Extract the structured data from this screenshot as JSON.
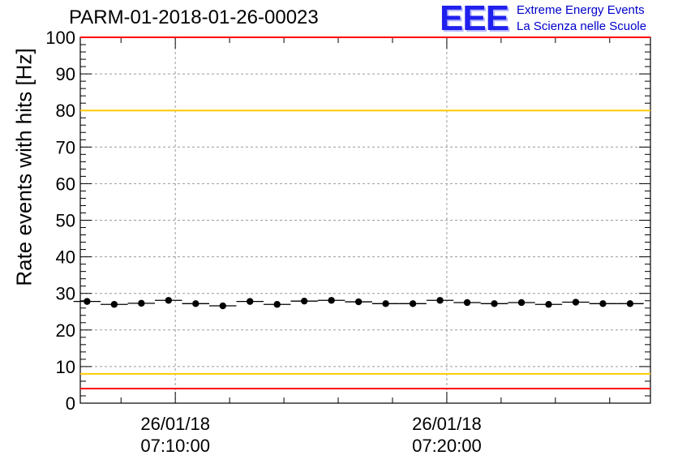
{
  "title": "PARM-01-2018-01-26-00023",
  "logo": {
    "mark": "EEE",
    "line1": "Extreme Energy Events",
    "line2": "La Scienza nelle Scuole"
  },
  "chart_data": {
    "type": "scatter",
    "title": "PARM-01-2018-01-26-00023",
    "xlabel": "",
    "ylabel": "Rate events with hits [Hz]",
    "ylim": [
      0,
      100
    ],
    "y_ticks": [
      0,
      10,
      20,
      30,
      40,
      50,
      60,
      70,
      80,
      90,
      100
    ],
    "x_range": [
      "2018-01-26 07:06:30",
      "2018-01-26 07:27:30"
    ],
    "x_ticks": [
      {
        "value": "2018-01-26 07:10:00",
        "date": "26/01/18",
        "time": "07:10:00"
      },
      {
        "value": "2018-01-26 07:20:00",
        "date": "26/01/18",
        "time": "07:20:00"
      }
    ],
    "grid": true,
    "reference_lines": [
      {
        "y": 100,
        "color": "#ff0000"
      },
      {
        "y": 80,
        "color": "#ffcc00"
      },
      {
        "y": 8,
        "color": "#ffcc00"
      },
      {
        "y": 4,
        "color": "#ff0000"
      }
    ],
    "marker_color": "#000000",
    "series": [
      {
        "x": [
          "2018-01-26 07:06:45",
          "2018-01-26 07:07:45",
          "2018-01-26 07:08:45",
          "2018-01-26 07:09:45",
          "2018-01-26 07:10:45",
          "2018-01-26 07:11:45",
          "2018-01-26 07:12:45",
          "2018-01-26 07:13:45",
          "2018-01-26 07:14:45",
          "2018-01-26 07:15:45",
          "2018-01-26 07:16:45",
          "2018-01-26 07:17:45",
          "2018-01-26 07:18:45",
          "2018-01-26 07:19:45",
          "2018-01-26 07:20:45",
          "2018-01-26 07:21:45",
          "2018-01-26 07:22:45",
          "2018-01-26 07:23:45",
          "2018-01-26 07:24:45",
          "2018-01-26 07:25:45",
          "2018-01-26 07:26:45"
        ],
        "y": [
          27.8,
          27.0,
          27.3,
          28.1,
          27.2,
          26.6,
          27.8,
          27.0,
          27.9,
          28.1,
          27.7,
          27.2,
          27.2,
          28.1,
          27.5,
          27.2,
          27.5,
          27.0,
          27.6,
          27.2,
          27.2
        ]
      }
    ]
  }
}
